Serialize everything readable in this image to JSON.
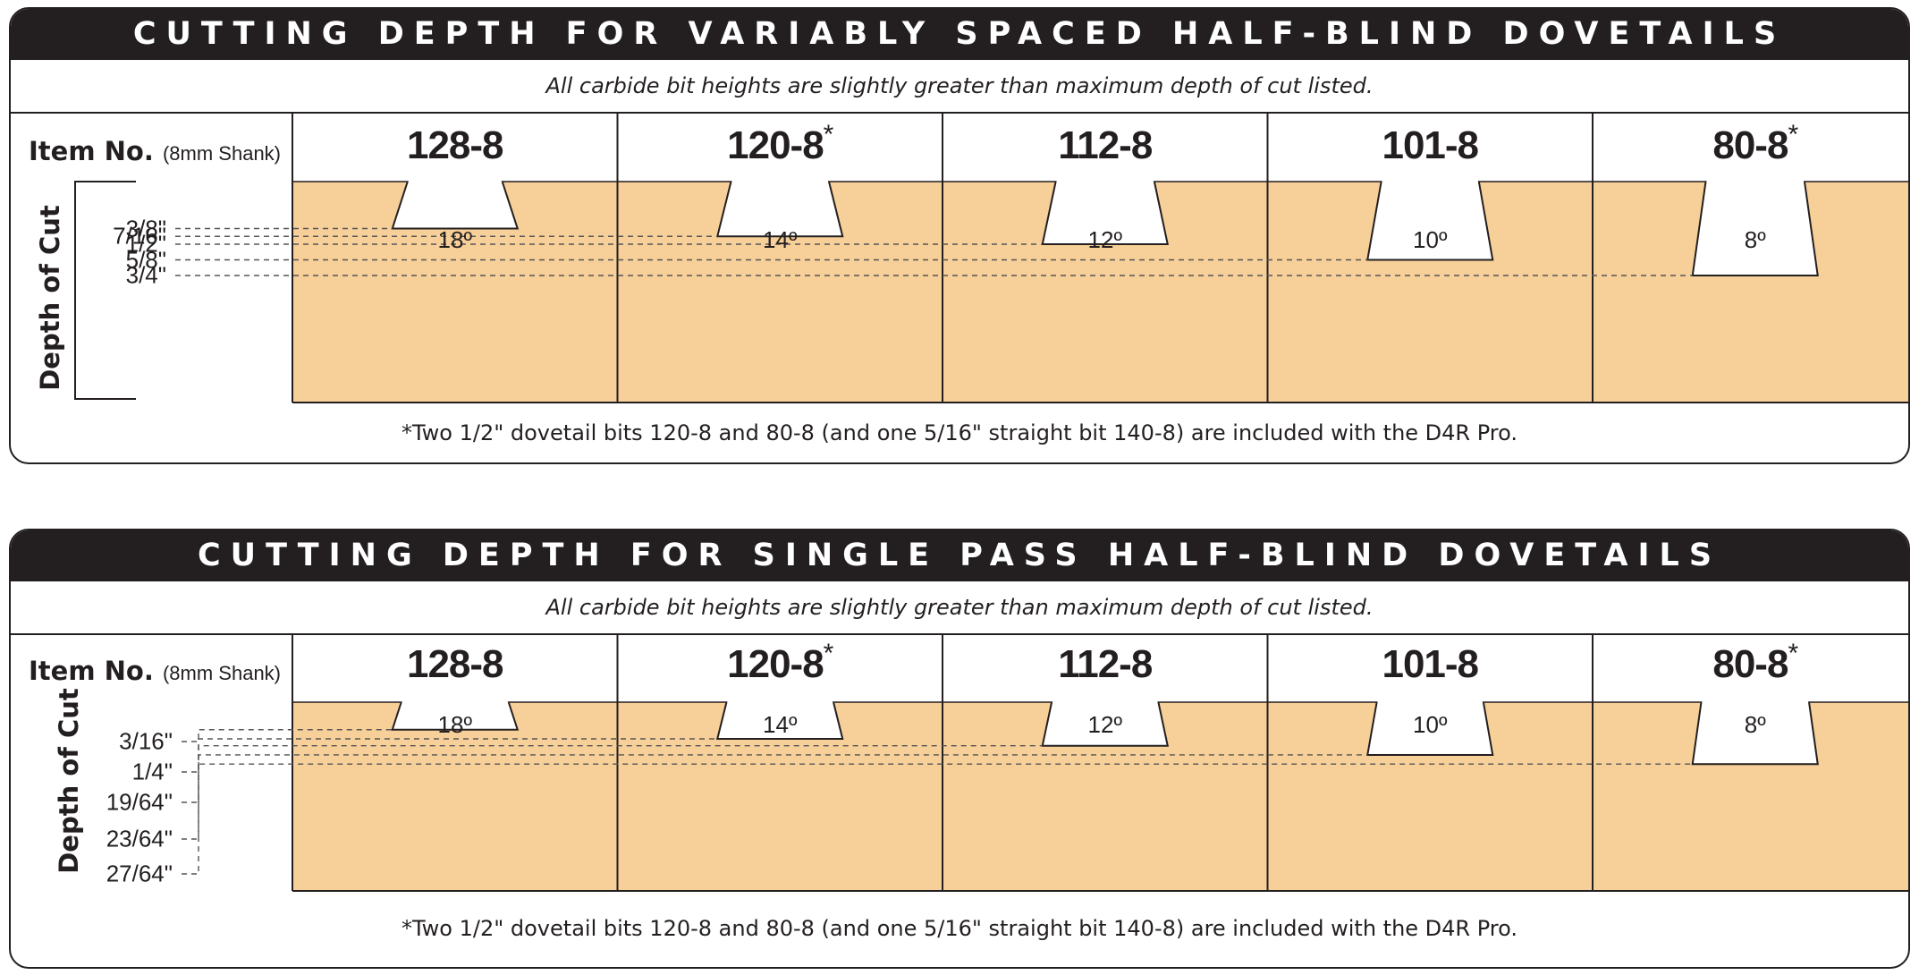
{
  "colors": {
    "wood": "#f7cf98",
    "ink": "#231f20",
    "bar_text": "#ffffff"
  },
  "common": {
    "item_no_label": "Item No.",
    "shank_label": "(8mm Shank)",
    "depth_axis_label": "Depth of Cut",
    "footnote": "*Two 1/2\" dovetail bits 120-8 and 80-8 (and one 5/16\" straight bit 140-8) are included with the D4R Pro.",
    "subtitle": "All carbide bit heights are slightly greater than maximum depth of cut listed."
  },
  "panels": [
    {
      "title": "CUTTING DEPTH FOR VARIABLY SPACED HALF-BLIND DOVETAILS",
      "bits": [
        {
          "item": "128-8",
          "asterisk": "",
          "angle": "18º",
          "depth": "3/8\"",
          "depth_in": 0.375
        },
        {
          "item": "120-8",
          "asterisk": "*",
          "angle": "14º",
          "depth": "7/16\"",
          "depth_in": 0.4375
        },
        {
          "item": "112-8",
          "asterisk": "",
          "angle": "12º",
          "depth": "1/2\"",
          "depth_in": 0.5
        },
        {
          "item": "101-8",
          "asterisk": "",
          "angle": "10º",
          "depth": "5/8\"",
          "depth_in": 0.625
        },
        {
          "item": "80-8",
          "asterisk": "*",
          "angle": "8º",
          "depth": "3/4\"",
          "depth_in": 0.75
        }
      ]
    },
    {
      "title": "CUTTING DEPTH FOR SINGLE PASS HALF-BLIND DOVETAILS",
      "bits": [
        {
          "item": "128-8",
          "asterisk": "",
          "angle": "18º",
          "depth": "3/16\"",
          "depth_in": 0.1875
        },
        {
          "item": "120-8",
          "asterisk": "*",
          "angle": "14º",
          "depth": "1/4\"",
          "depth_in": 0.25
        },
        {
          "item": "112-8",
          "asterisk": "",
          "angle": "12º",
          "depth": "19/64\"",
          "depth_in": 0.296875
        },
        {
          "item": "101-8",
          "asterisk": "",
          "angle": "10º",
          "depth": "23/64\"",
          "depth_in": 0.359375
        },
        {
          "item": "80-8",
          "asterisk": "*",
          "angle": "8º",
          "depth": "27/64\"",
          "depth_in": 0.421875
        }
      ]
    }
  ]
}
